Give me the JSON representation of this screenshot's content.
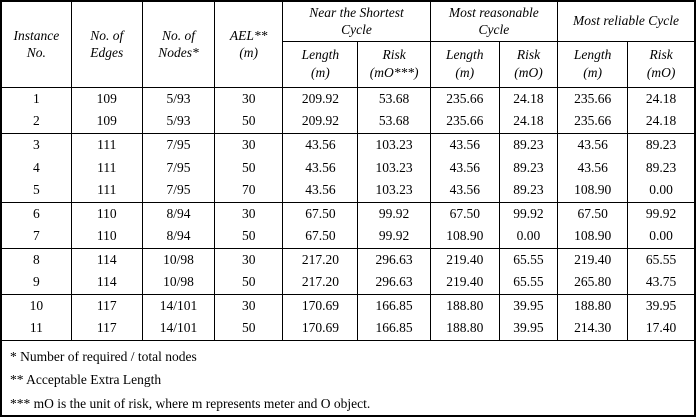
{
  "table": {
    "header": {
      "instance": "Instance\nNo.",
      "edges": "No. of\nEdges",
      "nodes": "No. of\nNodes*",
      "ael": "AEL**\n(m)",
      "groups": [
        {
          "label": "Near the Shortest\nCycle",
          "length": "Length\n(m)",
          "risk": "Risk\n(mO***)"
        },
        {
          "label": "Most reasonable\nCycle",
          "length": "Length\n(m)",
          "risk": "Risk\n(mO)"
        },
        {
          "label": "Most reliable Cycle",
          "length": "Length\n(m)",
          "risk": "Risk\n(mO)"
        }
      ]
    },
    "rows": [
      [
        "1",
        "109",
        "5/93",
        "30",
        "209.92",
        "53.68",
        "235.66",
        "24.18",
        "235.66",
        "24.18"
      ],
      [
        "2",
        "109",
        "5/93",
        "50",
        "209.92",
        "53.68",
        "235.66",
        "24.18",
        "235.66",
        "24.18"
      ],
      [
        "3",
        "111",
        "7/95",
        "30",
        "43.56",
        "103.23",
        "43.56",
        "89.23",
        "43.56",
        "89.23"
      ],
      [
        "4",
        "111",
        "7/95",
        "50",
        "43.56",
        "103.23",
        "43.56",
        "89.23",
        "43.56",
        "89.23"
      ],
      [
        "5",
        "111",
        "7/95",
        "70",
        "43.56",
        "103.23",
        "43.56",
        "89.23",
        "108.90",
        "0.00"
      ],
      [
        "6",
        "110",
        "8/94",
        "30",
        "67.50",
        "99.92",
        "67.50",
        "99.92",
        "67.50",
        "99.92"
      ],
      [
        "7",
        "110",
        "8/94",
        "50",
        "67.50",
        "99.92",
        "108.90",
        "0.00",
        "108.90",
        "0.00"
      ],
      [
        "8",
        "114",
        "10/98",
        "30",
        "217.20",
        "296.63",
        "219.40",
        "65.55",
        "219.40",
        "65.55"
      ],
      [
        "9",
        "114",
        "10/98",
        "50",
        "217.20",
        "296.63",
        "219.40",
        "65.55",
        "265.80",
        "43.75"
      ],
      [
        "10",
        "117",
        "14/101",
        "30",
        "170.69",
        "166.85",
        "188.80",
        "39.95",
        "188.80",
        "39.95"
      ],
      [
        "11",
        "117",
        "14/101",
        "50",
        "170.69",
        "166.85",
        "188.80",
        "39.95",
        "214.30",
        "17.40"
      ]
    ],
    "group_end_rows": [
      1,
      4,
      6,
      8,
      10
    ],
    "footnotes": [
      "* Number of required / total nodes",
      "** Acceptable Extra Length",
      "*** mO is the unit of risk, where m represents meter and O object."
    ]
  }
}
